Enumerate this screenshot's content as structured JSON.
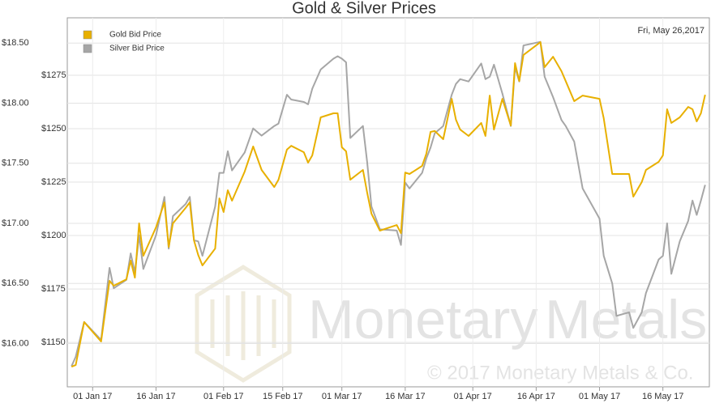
{
  "chart_data": {
    "type": "line",
    "title": "Gold & Silver Prices",
    "annotations": [
      "Fri, May 26,2017",
      "Monetary",
      "Metals",
      "© 2017 Monetary Metals & Co."
    ],
    "x": [
      "2016-12-27",
      "2016-12-28",
      "2016-12-30",
      "2017-01-03",
      "2017-01-05",
      "2017-01-06",
      "2017-01-09",
      "2017-01-10",
      "2017-01-11",
      "2017-01-12",
      "2017-01-13",
      "2017-01-16",
      "2017-01-18",
      "2017-01-19",
      "2017-01-20",
      "2017-01-23",
      "2017-01-24",
      "2017-01-25",
      "2017-01-26",
      "2017-01-27",
      "2017-01-30",
      "2017-01-31",
      "2017-02-01",
      "2017-02-02",
      "2017-02-03",
      "2017-02-06",
      "2017-02-08",
      "2017-02-10",
      "2017-02-13",
      "2017-02-14",
      "2017-02-16",
      "2017-02-17",
      "2017-02-20",
      "2017-02-21",
      "2017-02-22",
      "2017-02-24",
      "2017-02-27",
      "2017-02-28",
      "2017-03-01",
      "2017-03-02",
      "2017-03-03",
      "2017-03-06",
      "2017-03-07",
      "2017-03-08",
      "2017-03-10",
      "2017-03-14",
      "2017-03-15",
      "2017-03-16",
      "2017-03-17",
      "2017-03-20",
      "2017-03-21",
      "2017-03-22",
      "2017-03-23",
      "2017-03-25",
      "2017-03-27",
      "2017-03-28",
      "2017-03-29",
      "2017-03-31",
      "2017-04-03",
      "2017-04-04",
      "2017-04-05",
      "2017-04-06",
      "2017-04-08",
      "2017-04-10",
      "2017-04-11",
      "2017-04-12",
      "2017-04-13",
      "2017-04-17",
      "2017-04-18",
      "2017-04-20",
      "2017-04-22",
      "2017-04-23",
      "2017-04-25",
      "2017-04-27",
      "2017-05-01",
      "2017-05-02",
      "2017-05-04",
      "2017-05-05",
      "2017-05-08",
      "2017-05-09",
      "2017-05-11",
      "2017-05-12",
      "2017-05-15",
      "2017-05-16",
      "2017-05-17",
      "2017-05-18",
      "2017-05-20",
      "2017-05-22",
      "2017-05-23",
      "2017-05-24",
      "2017-05-25",
      "2017-05-26"
    ],
    "series": [
      {
        "name": "Gold Bid Price",
        "color": "#e8b000",
        "axis": "y2",
        "values": [
          1138.6,
          1139.4,
          1159.5,
          1150.4,
          1178.8,
          1176.5,
          1179.5,
          1188.3,
          1180.3,
          1205.7,
          1190.5,
          1203.8,
          1215.5,
          1194.7,
          1205.7,
          1212.9,
          1215.5,
          1197.7,
          1190.9,
          1186.0,
          1193.9,
          1217.4,
          1211.0,
          1221.2,
          1216.3,
          1229.9,
          1241.7,
          1230.7,
          1222.7,
          1226.1,
          1240.2,
          1242.0,
          1239.0,
          1234.1,
          1237.5,
          1255.3,
          1257.2,
          1257.2,
          1241.3,
          1239.4,
          1226.1,
          1230.7,
          1220.1,
          1210.2,
          1202.3,
          1204.9,
          1201.1,
          1229.5,
          1228.8,
          1232.6,
          1238.3,
          1248.5,
          1248.9,
          1245.1,
          1264.0,
          1254.2,
          1249.6,
          1246.6,
          1252.7,
          1246.6,
          1265.5,
          1249.6,
          1264.0,
          1251.5,
          1280.7,
          1272.3,
          1284.5,
          1290.5,
          1278.8,
          1283.7,
          1276.9,
          1272.3,
          1262.9,
          1265.5,
          1264.0,
          1254.9,
          1228.8,
          1228.8,
          1228.8,
          1218.2,
          1225.0,
          1230.7,
          1234.5,
          1237.5,
          1259.1,
          1252.7,
          1255.3,
          1260.2,
          1259.1,
          1253.4,
          1257.2,
          1265.9
        ]
      },
      {
        "name": "Silver Bid Price",
        "color": "#a6a6a6",
        "values": [
          15.81,
          15.89,
          16.18,
          16.03,
          16.63,
          16.46,
          16.53,
          16.75,
          16.59,
          16.9,
          16.62,
          16.9,
          17.22,
          16.79,
          17.06,
          17.16,
          17.22,
          16.86,
          16.85,
          16.73,
          17.14,
          17.42,
          17.42,
          17.6,
          17.44,
          17.59,
          17.79,
          17.73,
          17.81,
          17.83,
          18.07,
          18.03,
          18.01,
          17.99,
          18.12,
          18.28,
          18.37,
          18.39,
          18.37,
          18.34,
          17.71,
          17.81,
          17.51,
          17.14,
          16.95,
          16.94,
          16.82,
          17.34,
          17.29,
          17.42,
          17.54,
          17.63,
          17.75,
          17.81,
          18.07,
          18.16,
          18.2,
          18.18,
          18.33,
          18.2,
          18.22,
          18.32,
          18.08,
          17.81,
          18.3,
          18.18,
          18.48,
          18.51,
          18.22,
          18.05,
          17.86,
          17.81,
          17.68,
          17.29,
          17.04,
          16.73,
          16.5,
          16.23,
          16.26,
          16.13,
          16.26,
          16.42,
          16.7,
          16.73,
          17.0,
          16.58,
          16.85,
          17.02,
          17.19,
          17.07,
          17.19,
          17.32
        ]
      }
    ],
    "xlim": [
      "2016-12-26",
      "2017-05-27"
    ],
    "xticks": [
      {
        "value": "2017-01-01",
        "label": "01 Jan 17"
      },
      {
        "value": "2017-01-16",
        "label": "16 Jan 17"
      },
      {
        "value": "2017-02-01",
        "label": "01 Feb 17"
      },
      {
        "value": "2017-02-15",
        "label": "15 Feb 17"
      },
      {
        "value": "2017-03-01",
        "label": "01 Mar 17"
      },
      {
        "value": "2017-03-16",
        "label": "16 Mar 17"
      },
      {
        "value": "2017-04-01",
        "label": "01 Apr 17"
      },
      {
        "value": "2017-04-16",
        "label": "16 Apr 17"
      },
      {
        "value": "2017-05-01",
        "label": "01 May 17"
      },
      {
        "value": "2017-05-16",
        "label": "16 May 17"
      }
    ],
    "ylim": [
      15.64,
      18.71
    ],
    "yticks": [
      {
        "value": 16,
        "label": "$16.00"
      },
      {
        "value": 16.5,
        "label": "$16.50"
      },
      {
        "value": 17,
        "label": "$17.00"
      },
      {
        "value": 17.5,
        "label": "$17.50"
      },
      {
        "value": 18,
        "label": "$18.00"
      },
      {
        "value": 18.5,
        "label": "$18.50"
      }
    ],
    "y2lim": [
      1129.2,
      1301.9
    ],
    "y2ticks": [
      {
        "value": 1150,
        "label": "$1150"
      },
      {
        "value": 1175,
        "label": "$1175"
      },
      {
        "value": 1200,
        "label": "$1200"
      },
      {
        "value": 1225,
        "label": "$1225"
      },
      {
        "value": 1250,
        "label": "$1250"
      },
      {
        "value": 1275,
        "label": "$1275"
      }
    ],
    "grid": true,
    "legend": "top-left"
  }
}
